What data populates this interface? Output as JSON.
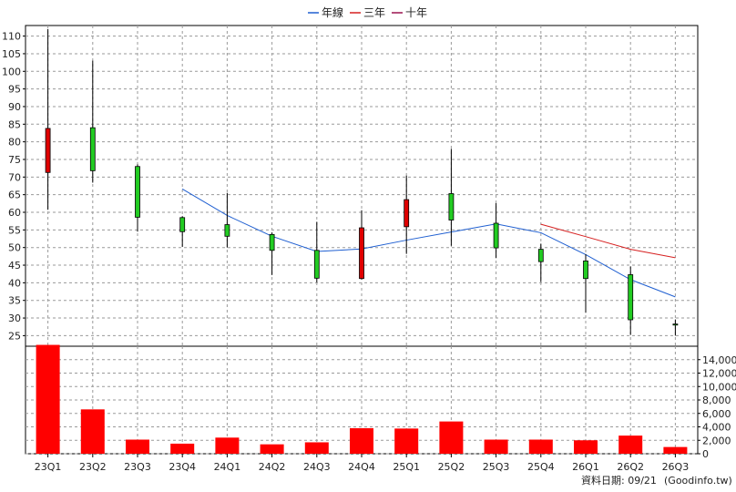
{
  "footer": {
    "date_text": "資料日期: 09/21",
    "source_text": "(Goodinfo.tw)"
  },
  "chart_data": {
    "type": "candlestick",
    "legend": [
      {
        "name": "年線",
        "color": "#1f5fd1"
      },
      {
        "name": "三年",
        "color": "#d62020"
      },
      {
        "name": "十年",
        "color": "#9b1250"
      }
    ],
    "legend_position": "top-center",
    "grid": true,
    "up_color": "#e00000",
    "down_color": "#22cc22",
    "categories": [
      "23Q1",
      "23Q2",
      "23Q3",
      "23Q4",
      "24Q1",
      "24Q2",
      "24Q3",
      "24Q4",
      "25Q1",
      "25Q2",
      "25Q3",
      "25Q4",
      "26Q1",
      "26Q2",
      "26Q3"
    ],
    "price_axis": {
      "ylim": [
        22,
        113
      ],
      "ticks": [
        25,
        30,
        35,
        40,
        45,
        50,
        55,
        60,
        65,
        70,
        75,
        80,
        85,
        90,
        95,
        100,
        105,
        110
      ]
    },
    "candles": [
      {
        "q": "23Q1",
        "open": 71.3,
        "close": 83.8,
        "high": 112,
        "low": 60.7
      },
      {
        "q": "23Q2",
        "open": 84,
        "close": 71.8,
        "high": 103,
        "low": 68.4
      },
      {
        "q": "23Q3",
        "open": 73,
        "close": 58.6,
        "high": 73.6,
        "low": 54.5
      },
      {
        "q": "23Q4",
        "open": 58.5,
        "close": 54.5,
        "high": 58.9,
        "low": 50.2
      },
      {
        "q": "24Q1",
        "open": 56.5,
        "close": 53.2,
        "high": 65.5,
        "low": 50.0
      },
      {
        "q": "24Q2",
        "open": 53.7,
        "close": 49.2,
        "high": 54.3,
        "low": 42.2
      },
      {
        "q": "24Q3",
        "open": 49.2,
        "close": 41.3,
        "high": 57.3,
        "low": 40.1
      },
      {
        "q": "24Q4",
        "open": 41.2,
        "close": 55.6,
        "high": 60.6,
        "low": 40.9
      },
      {
        "q": "25Q1",
        "open": 55.9,
        "close": 63.6,
        "high": 70.4,
        "low": 48.2
      },
      {
        "q": "25Q2",
        "open": 65.3,
        "close": 57.8,
        "high": 78.0,
        "low": 50.5
      },
      {
        "q": "25Q3",
        "open": 56.9,
        "close": 49.9,
        "high": 62.6,
        "low": 47.0
      },
      {
        "q": "25Q4",
        "open": 49.5,
        "close": 46.0,
        "high": 51.1,
        "low": 40.2
      },
      {
        "q": "26Q1",
        "open": 46.2,
        "close": 41.2,
        "high": 48.1,
        "low": 31.5
      },
      {
        "q": "26Q2",
        "open": 42.3,
        "close": 29.5,
        "high": 44.6,
        "low": 25.2
      },
      {
        "q": "26Q3",
        "open": 28.3,
        "close": 28.0,
        "high": 29.6,
        "low": 25.0
      }
    ],
    "lines": [
      {
        "name": "年線",
        "points": [
          [
            "23Q4",
            66.6
          ],
          [
            "24Q1",
            59.1
          ],
          [
            "24Q2",
            53.2
          ],
          [
            "24Q3",
            48.9
          ],
          [
            "24Q4",
            49.6
          ],
          [
            "25Q1",
            52.1
          ],
          [
            "25Q2",
            54.4
          ],
          [
            "25Q3",
            56.7
          ],
          [
            "25Q4",
            54.2
          ],
          [
            "26Q1",
            48.0
          ],
          [
            "26Q2",
            40.9
          ],
          [
            "26Q3",
            36.0
          ]
        ]
      },
      {
        "name": "三年",
        "points": [
          [
            "25Q4",
            56.6
          ],
          [
            "26Q1",
            53.1
          ],
          [
            "26Q2",
            49.5
          ],
          [
            "26Q3",
            47.1
          ]
        ]
      }
    ],
    "volume_axis": {
      "ylim": [
        0,
        16000
      ],
      "ticks": [
        "0",
        "2,000",
        "4,000",
        "6,000",
        "8,000",
        "10,000",
        "12,000",
        "14,000"
      ],
      "tick_values": [
        0,
        2000,
        4000,
        6000,
        8000,
        10000,
        12000,
        14000
      ]
    },
    "volumes": [
      16200,
      6600,
      2100,
      1500,
      2400,
      1400,
      1700,
      3800,
      3750,
      4800,
      2100,
      2100,
      2000,
      2700,
      1000
    ]
  }
}
